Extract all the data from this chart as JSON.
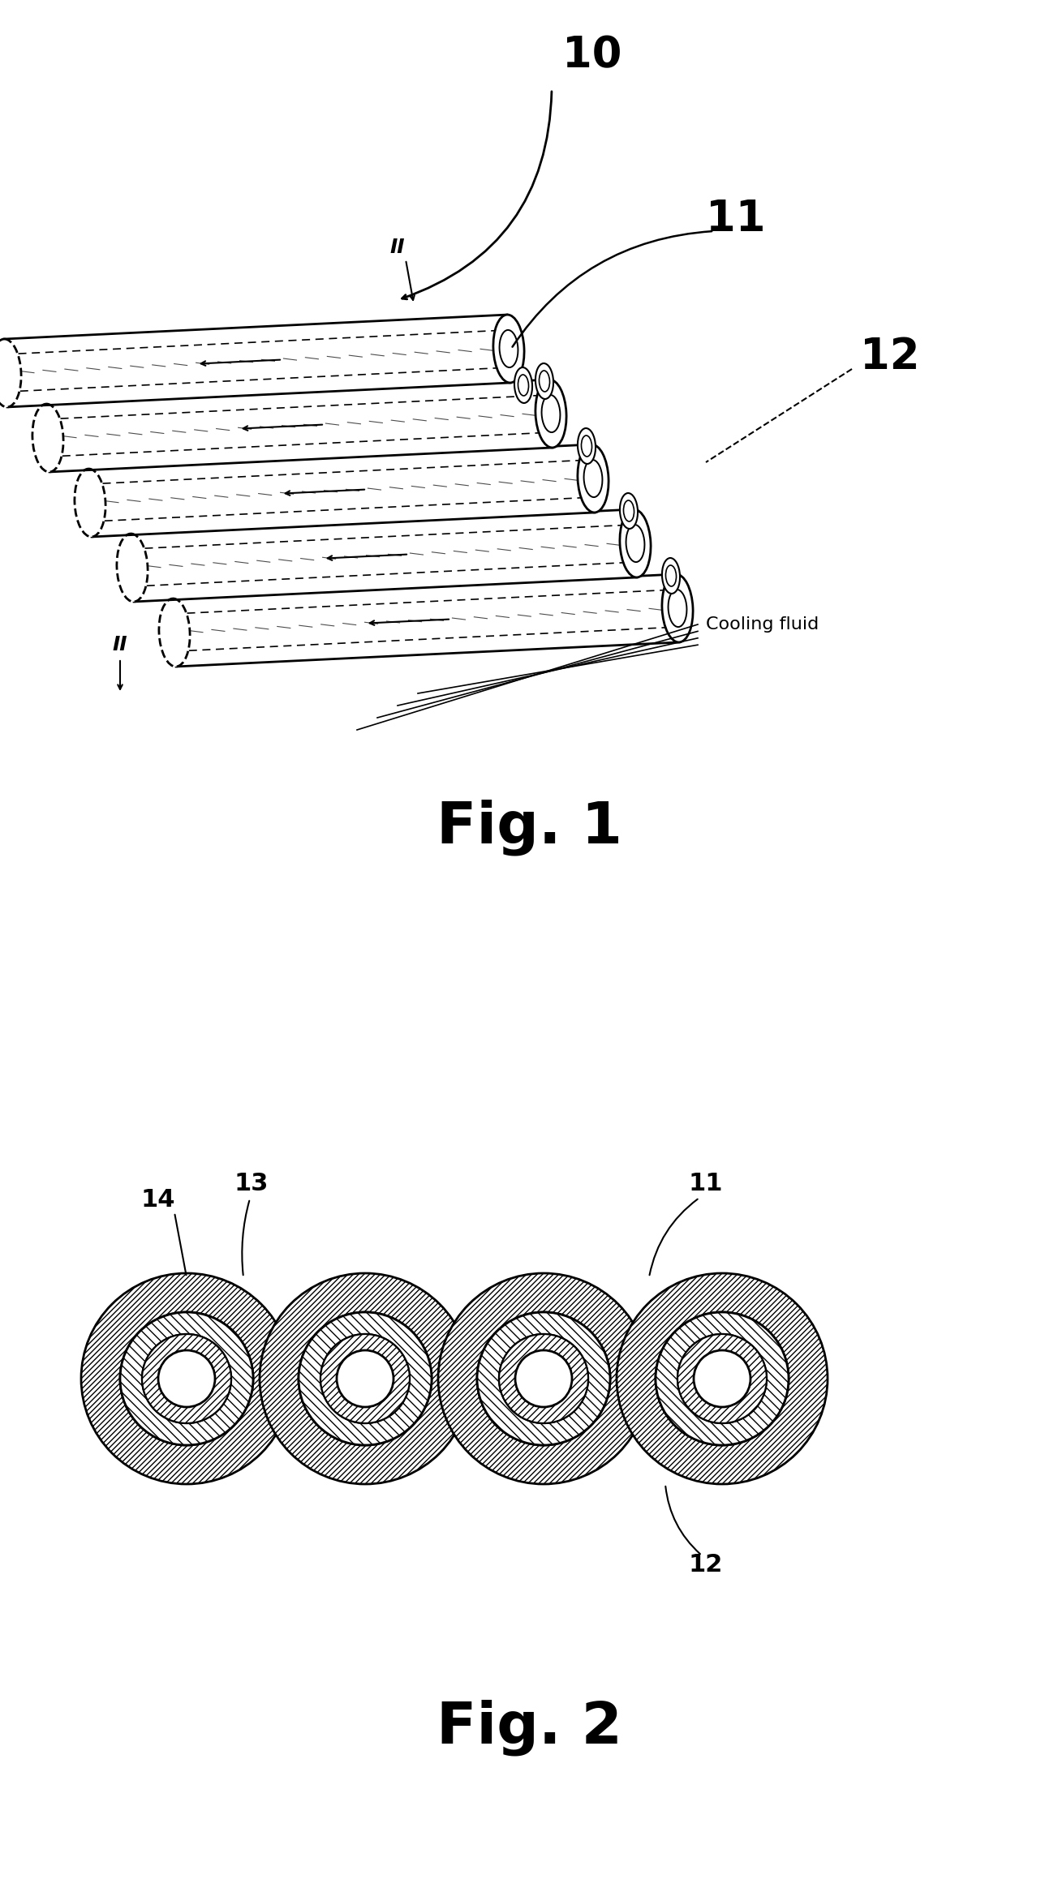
{
  "bg_color": "#ffffff",
  "line_color": "#000000",
  "fig_width": 13.04,
  "fig_height": 23.33,
  "dpi": 100,
  "fig1_label": "Fig. 1",
  "fig2_label": "Fig. 2",
  "label_10": "10",
  "label_11": "11",
  "label_12": "12",
  "label_13": "13",
  "label_14": "14",
  "label_II": "II",
  "cooling_fluid_label": "Cooling fluid",
  "fig1_title_fontsize": 52,
  "fig2_title_fontsize": 52,
  "label_fontsize_large": 38,
  "label_fontsize_medium": 22,
  "label_II_fontsize": 18
}
